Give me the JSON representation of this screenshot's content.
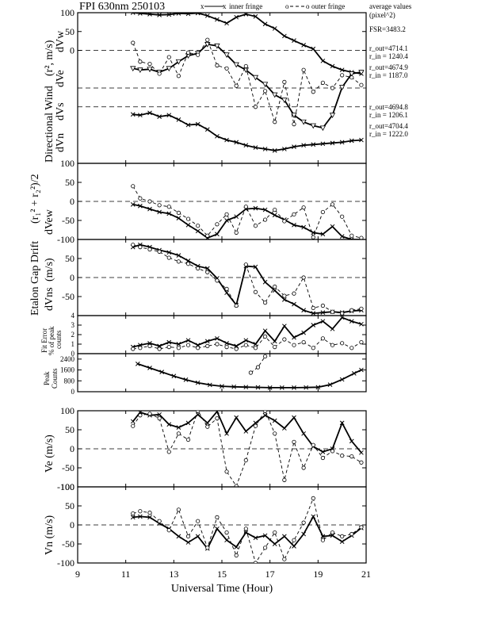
{
  "chart_data": {
    "type": "line",
    "title": "FPI 630nm 250103",
    "legend": {
      "inner": "inner fringe",
      "outer": "outer fringe",
      "average": "average values",
      "average_units": "(pixel^2)"
    },
    "xlabel": "Universal Time (Hour)",
    "xlim": [
      9,
      21
    ],
    "xticks": [
      9,
      11,
      13,
      15,
      17,
      19,
      21
    ],
    "panel_labels": {
      "directional_wind": "Directional Wind",
      "directional_wind_units": "(r², m/s)",
      "dvw": "dVw",
      "dve": "dVe",
      "dvs": "dVs",
      "dvn": "dVn",
      "etalon_gap": "Etalon Gap Drift",
      "etalon_gap_units": "(r₁² + r₂²)/2",
      "dvew": "dVew",
      "dvns": "dVns",
      "units_ms": "(m/s)",
      "fit_error_1": "Fit Error",
      "fit_error_2": "% of peak",
      "fit_error_3": "counts",
      "peak_1": "Peak",
      "peak_2": "Counts",
      "ve": "Ve (m/s)",
      "vn": "Vn (m/s)"
    },
    "annotations": {
      "fsr": "FSR=3483.2",
      "w_out": "r_out=4714.1",
      "w_in": "r_in = 1240.4",
      "e_out": "r_out=4674.9",
      "e_in": "r_in = 1187.0",
      "s_out": "r_out=4694.8",
      "s_in": "r_in = 1206.1",
      "n_out": "r_out=4704.4",
      "n_in": "r_in = 1222.0"
    },
    "panels": [
      {
        "id": "dir_wind",
        "yticks": [
          100,
          50,
          0
        ],
        "ylim": [
          -300,
          100
        ],
        "zero_lines": [
          0,
          -100,
          -150
        ],
        "series": [
          {
            "fringe": "inner",
            "marker": "x",
            "x": [
              11.3,
              11.6,
              12.0,
              12.4,
              12.8,
              13.2,
              13.6,
              14.0,
              14.4,
              14.8,
              15.2,
              15.6,
              16.0,
              16.4,
              16.8,
              17.2,
              17.6,
              18.0,
              18.4,
              18.8,
              19.2,
              19.6,
              20.0,
              20.4,
              20.8
            ],
            "y": [
              100,
              98,
              96,
              94,
              95,
              98,
              97,
              99,
              92,
              82,
              72,
              88,
              96,
              90,
              70,
              58,
              38,
              26,
              14,
              4,
              -28,
              -42,
              -52,
              -58,
              -62
            ]
          },
          {
            "fringe": "inner",
            "marker": "v",
            "x": [
              11.3,
              11.6,
              12.0,
              12.4,
              12.8,
              13.2,
              13.6,
              14.0,
              14.4,
              14.8,
              15.2,
              15.6,
              16.0,
              16.4,
              16.8,
              17.2,
              17.6,
              18.0,
              18.4,
              18.8,
              19.2,
              19.6,
              20.0,
              20.4,
              20.8
            ],
            "y": [
              -48,
              -52,
              -50,
              -58,
              -48,
              -30,
              -14,
              -8,
              16,
              12,
              -12,
              -38,
              -52,
              -72,
              -90,
              -118,
              -132,
              -172,
              -190,
              -200,
              -206,
              -172,
              -98,
              -62,
              -58
            ]
          },
          {
            "fringe": "inner",
            "marker": "x",
            "x": [
              11.3,
              11.6,
              12.0,
              12.4,
              12.8,
              13.2,
              13.6,
              14.0,
              14.4,
              14.8,
              15.2,
              15.6,
              16.0,
              16.4,
              16.8,
              17.2,
              17.6,
              18.0,
              18.4,
              18.8,
              19.2,
              19.6,
              20.0,
              20.4,
              20.8
            ],
            "y": [
              -170,
              -172,
              -166,
              -176,
              -172,
              -184,
              -198,
              -196,
              -210,
              -228,
              -238,
              -244,
              -252,
              -258,
              -262,
              -266,
              -262,
              -256,
              -252,
              -250,
              -248,
              -246,
              -244,
              -240,
              -238
            ]
          },
          {
            "fringe": "outer",
            "marker": "o",
            "x": [
              11.3,
              11.6,
              12.0,
              12.4,
              12.8,
              13.2,
              13.6,
              14.0,
              14.4,
              14.8,
              15.2,
              15.6,
              16.0,
              16.4,
              16.8,
              17.2,
              17.6,
              18.0,
              18.4,
              18.8,
              19.2,
              19.6,
              20.0,
              20.4,
              20.8
            ],
            "y": [
              20,
              -30,
              -36,
              -62,
              -18,
              -68,
              -6,
              -12,
              28,
              -40,
              -48,
              -94,
              -42,
              -150,
              -108,
              -190,
              -84,
              -196,
              -52,
              -110,
              -86,
              -100,
              -66,
              -72,
              -92
            ]
          }
        ]
      },
      {
        "id": "dvew",
        "yticks": [
          100,
          50,
          0,
          -50,
          -100
        ],
        "ylim": [
          -100,
          100
        ],
        "zero_lines": [
          0
        ],
        "series": [
          {
            "fringe": "inner",
            "marker": "x",
            "x": [
              11.3,
              11.6,
              12.0,
              12.4,
              12.8,
              13.2,
              13.6,
              14.0,
              14.4,
              14.8,
              15.2,
              15.6,
              16.0,
              16.4,
              16.8,
              17.2,
              17.6,
              18.0,
              18.4,
              18.8,
              19.2,
              19.6,
              20.0,
              20.4,
              20.8
            ],
            "y": [
              -8,
              -12,
              -20,
              -28,
              -32,
              -44,
              -62,
              -78,
              -96,
              -86,
              -50,
              -40,
              -20,
              -18,
              -22,
              -36,
              -48,
              -62,
              -68,
              -82,
              -86,
              -66,
              -92,
              -100,
              -102
            ]
          },
          {
            "fringe": "outer",
            "marker": "o",
            "x": [
              11.3,
              11.6,
              12.0,
              12.4,
              12.8,
              13.2,
              13.6,
              14.0,
              14.4,
              14.8,
              15.2,
              15.6,
              16.0,
              16.4,
              16.8,
              17.2,
              17.6,
              18.0,
              18.4,
              18.8,
              19.2,
              19.6,
              20.0,
              20.4,
              20.8
            ],
            "y": [
              40,
              8,
              0,
              -10,
              -14,
              -30,
              -46,
              -64,
              -90,
              -60,
              -34,
              -82,
              -14,
              -64,
              -48,
              -22,
              -52,
              -34,
              -16,
              -94,
              -28,
              -8,
              -40,
              -90,
              -96
            ]
          }
        ]
      },
      {
        "id": "dvns",
        "yticks": [
          50,
          0,
          -50
        ],
        "ylim": [
          -100,
          100
        ],
        "zero_lines": [
          0
        ],
        "series": [
          {
            "fringe": "inner",
            "marker": "x",
            "x": [
              11.3,
              11.6,
              12.0,
              12.4,
              12.8,
              13.2,
              13.6,
              14.0,
              14.4,
              14.8,
              15.2,
              15.6,
              16.0,
              16.4,
              16.8,
              17.2,
              17.6,
              18.0,
              18.4,
              18.8,
              19.2,
              19.6,
              20.0,
              20.4,
              20.8
            ],
            "y": [
              80,
              86,
              80,
              72,
              66,
              58,
              44,
              30,
              24,
              -2,
              -40,
              -72,
              30,
              28,
              -12,
              -34,
              -58,
              -70,
              -86,
              -94,
              -92,
              -90,
              -92,
              -88,
              -86
            ]
          },
          {
            "fringe": "outer",
            "marker": "o",
            "x": [
              11.3,
              11.6,
              12.0,
              12.4,
              12.8,
              13.2,
              13.6,
              14.0,
              14.4,
              14.8,
              15.2,
              15.6,
              16.0,
              16.4,
              16.8,
              17.2,
              17.6,
              18.0,
              18.4,
              18.8,
              19.2,
              19.6,
              20.0,
              20.4,
              20.8
            ],
            "y": [
              86,
              80,
              74,
              68,
              52,
              42,
              36,
              24,
              14,
              -8,
              -30,
              -74,
              34,
              -38,
              -66,
              -24,
              -48,
              -42,
              0,
              -80,
              -74,
              -90,
              -94,
              -86,
              -82
            ]
          }
        ]
      },
      {
        "id": "fit_error",
        "yticks": [
          4,
          3,
          2,
          1,
          0
        ],
        "ylim": [
          0,
          4
        ],
        "zero_lines": [],
        "series": [
          {
            "fringe": "inner",
            "marker": "x",
            "x": [
              11.3,
              11.6,
              12.0,
              12.4,
              12.8,
              13.2,
              13.6,
              14.0,
              14.4,
              14.8,
              15.2,
              15.6,
              16.0,
              16.4,
              16.8,
              17.2,
              17.6,
              18.0,
              18.4,
              18.8,
              19.2,
              19.6,
              20.0,
              20.4,
              20.8
            ],
            "y": [
              0.7,
              0.9,
              1.1,
              0.8,
              1.2,
              1.0,
              1.4,
              0.9,
              1.3,
              1.6,
              1.1,
              0.8,
              1.4,
              1.0,
              2.4,
              1.3,
              2.9,
              1.7,
              2.2,
              3.0,
              3.4,
              2.6,
              3.8,
              3.4,
              3.1
            ]
          },
          {
            "fringe": "outer",
            "marker": "o",
            "x": [
              11.3,
              11.6,
              12.0,
              12.4,
              12.8,
              13.2,
              13.6,
              14.0,
              14.4,
              14.8,
              15.2,
              15.6,
              16.0,
              16.4,
              16.8,
              17.2,
              17.6,
              18.0,
              18.4,
              18.8,
              19.2,
              19.6,
              20.0,
              20.4,
              20.8
            ],
            "y": [
              0.5,
              0.6,
              0.8,
              0.5,
              0.7,
              0.6,
              0.9,
              0.6,
              0.8,
              1.0,
              0.7,
              0.5,
              0.9,
              0.6,
              1.8,
              0.7,
              1.5,
              0.9,
              1.2,
              0.6,
              1.6,
              0.9,
              1.1,
              0.6,
              1.2
            ]
          }
        ]
      },
      {
        "id": "peak",
        "yticks": [
          2400,
          1600,
          800,
          0
        ],
        "ylim": [
          0,
          2800
        ],
        "zero_lines": [],
        "series": [
          {
            "fringe": "inner",
            "marker": "x",
            "x": [
              11.5,
              12.0,
              12.5,
              13.0,
              13.5,
              14.0,
              14.5,
              15.0,
              15.5,
              16.0,
              16.5,
              17.0,
              17.5,
              18.0,
              18.5,
              19.0,
              19.5,
              20.0,
              20.5,
              20.8
            ],
            "y": [
              2050,
              1750,
              1450,
              1150,
              880,
              660,
              500,
              400,
              360,
              340,
              320,
              300,
              300,
              300,
              310,
              330,
              520,
              900,
              1350,
              1600
            ]
          },
          {
            "fringe": "outer",
            "marker": "o",
            "x": [
              16.2,
              16.5,
              16.8
            ],
            "y": [
              1400,
              1800,
              2600
            ]
          }
        ]
      },
      {
        "id": "ve",
        "yticks": [
          100,
          50,
          0,
          -50,
          -100
        ],
        "ylim": [
          -100,
          100
        ],
        "zero_lines": [
          0
        ],
        "series": [
          {
            "fringe": "inner",
            "marker": "x",
            "x": [
              11.3,
              11.6,
              12.0,
              12.4,
              12.8,
              13.2,
              13.6,
              14.0,
              14.4,
              14.8,
              15.2,
              15.6,
              16.0,
              16.4,
              16.8,
              17.2,
              17.6,
              18.0,
              18.4,
              18.8,
              19.2,
              19.6,
              20.0,
              20.4,
              20.8
            ],
            "y": [
              72,
              96,
              88,
              90,
              64,
              56,
              68,
              90,
              68,
              98,
              40,
              82,
              46,
              68,
              88,
              74,
              54,
              82,
              40,
              6,
              -8,
              0,
              68,
              20,
              -10
            ]
          },
          {
            "fringe": "outer",
            "marker": "o",
            "x": [
              11.3,
              11.6,
              12.0,
              12.4,
              12.8,
              13.2,
              13.6,
              14.0,
              14.4,
              14.8,
              15.2,
              15.6,
              16.0,
              16.4,
              16.8,
              17.2,
              17.6,
              18.0,
              18.4,
              18.8,
              19.2,
              19.6,
              20.0,
              20.4,
              20.8
            ],
            "y": [
              60,
              88,
              92,
              80,
              -8,
              40,
              24,
              120,
              58,
              80,
              -60,
              -98,
              -30,
              60,
              100,
              40,
              -82,
              18,
              -50,
              10,
              -24,
              -6,
              -18,
              -20,
              -36
            ]
          }
        ]
      },
      {
        "id": "vn",
        "yticks": [
          100,
          50,
          0,
          -50,
          -100
        ],
        "ylim": [
          -100,
          100
        ],
        "zero_lines": [
          0
        ],
        "series": [
          {
            "fringe": "inner",
            "marker": "x",
            "x": [
              11.3,
              11.6,
              12.0,
              12.4,
              12.8,
              13.2,
              13.6,
              14.0,
              14.4,
              14.8,
              15.2,
              15.6,
              16.0,
              16.4,
              16.8,
              17.2,
              17.6,
              18.0,
              18.4,
              18.8,
              19.2,
              19.6,
              20.0,
              20.4,
              20.8
            ],
            "y": [
              20,
              22,
              20,
              4,
              -10,
              -30,
              -46,
              -30,
              -62,
              -10,
              -40,
              -58,
              -20,
              -34,
              -28,
              -50,
              -30,
              -56,
              -24,
              22,
              -30,
              -28,
              -44,
              -28,
              -8
            ]
          },
          {
            "fringe": "outer",
            "marker": "o",
            "x": [
              11.3,
              11.6,
              12.0,
              12.4,
              12.8,
              13.2,
              13.6,
              14.0,
              14.4,
              14.8,
              15.2,
              15.6,
              16.0,
              16.4,
              16.8,
              17.2,
              17.6,
              18.0,
              18.4,
              18.8,
              19.2,
              19.6,
              20.0,
              20.4,
              20.8
            ],
            "y": [
              30,
              36,
              32,
              10,
              -14,
              40,
              -30,
              10,
              -60,
              20,
              -20,
              -80,
              -10,
              -100,
              -60,
              -20,
              -90,
              -40,
              6,
              70,
              -40,
              -20,
              -30,
              -24,
              -6
            ]
          }
        ]
      }
    ]
  }
}
